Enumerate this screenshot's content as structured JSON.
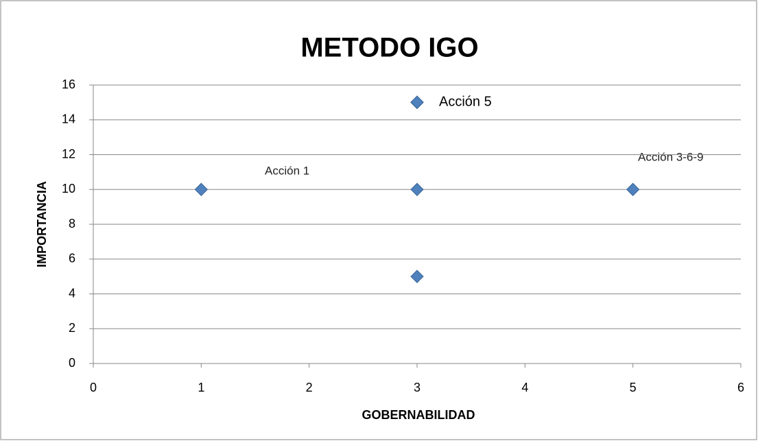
{
  "chart_data": {
    "type": "scatter",
    "title": "METODO IGO",
    "x_label": "GOBERNABILIDAD",
    "y_label": "IMPORTANCIA",
    "series": [
      {
        "name": "Acción 5",
        "color": "#4f81bd",
        "x": [
          1,
          3,
          5,
          3,
          3
        ],
        "values": [
          10,
          10,
          10,
          5,
          15
        ]
      }
    ],
    "annotations": [
      "Acción 1",
      "Acción 3-6-9"
    ],
    "xlim": [
      0,
      6
    ],
    "xticks": [
      0,
      1,
      2,
      3,
      4,
      5,
      6
    ],
    "ylim": [
      0,
      16
    ],
    "yticks": [
      0,
      2,
      4,
      6,
      8,
      10,
      12,
      14,
      16
    ],
    "grid": true,
    "legend": "top"
  }
}
